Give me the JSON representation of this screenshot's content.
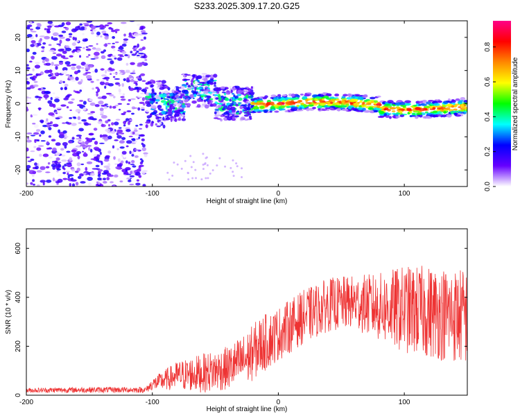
{
  "title": "S233.2025.309.17.20.G25",
  "chart_data": [
    {
      "type": "heatmap",
      "xlabel": "Height of straight line (km)",
      "ylabel": "Frequency (Hz)",
      "xlim": [
        -200,
        150
      ],
      "ylim": [
        -25,
        25
      ],
      "xticks": [
        -200,
        -100,
        0,
        100
      ],
      "yticks": [
        -20,
        -10,
        0,
        10,
        20
      ],
      "colorbar": {
        "label": "Normalized spectral amplitude",
        "range": [
          0,
          0.95
        ],
        "ticks": [
          0.0,
          0.2,
          0.4,
          0.6,
          0.8
        ],
        "tick_labels": [
          "0.0",
          "0.2",
          "0.4",
          "0.6",
          "0.8"
        ],
        "colors": [
          "#ffffff",
          "#6600ff",
          "#0000ff",
          "#00ffff",
          "#00ff00",
          "#ffff00",
          "#ff8800",
          "#ff0000",
          "#ff0088"
        ]
      },
      "features": [
        {
          "name": "noise",
          "x_range": [
            -200,
            -105
          ],
          "freq_range": [
            -25,
            25
          ],
          "amplitude": 0.1
        },
        {
          "name": "transition",
          "x_range": [
            -105,
            -20
          ],
          "freq_center": [
            0,
            5
          ],
          "amplitude": 0.25
        },
        {
          "name": "signal-band",
          "x_range": [
            -20,
            150
          ],
          "freq_center": 0,
          "amplitude": 0.8
        }
      ]
    },
    {
      "type": "line",
      "xlabel": "Height of straight line (km)",
      "ylabel": "SNR (10 * v/v)",
      "xlim": [
        -200,
        150
      ],
      "ylim": [
        0,
        680
      ],
      "xticks": [
        -200,
        -100,
        0,
        100
      ],
      "yticks": [
        0,
        200,
        400,
        600
      ],
      "color": "#ee3333",
      "trend": {
        "x": [
          -200,
          -150,
          -105,
          -100,
          -80,
          -60,
          -40,
          -25,
          -15,
          0,
          20,
          40,
          60,
          80,
          100,
          120,
          150
        ],
        "mean": [
          20,
          22,
          22,
          45,
          80,
          90,
          110,
          150,
          200,
          250,
          320,
          370,
          380,
          360,
          350,
          340,
          320
        ],
        "spread": [
          10,
          12,
          12,
          25,
          60,
          80,
          90,
          110,
          120,
          110,
          110,
          110,
          110,
          140,
          180,
          190,
          200
        ]
      }
    }
  ]
}
